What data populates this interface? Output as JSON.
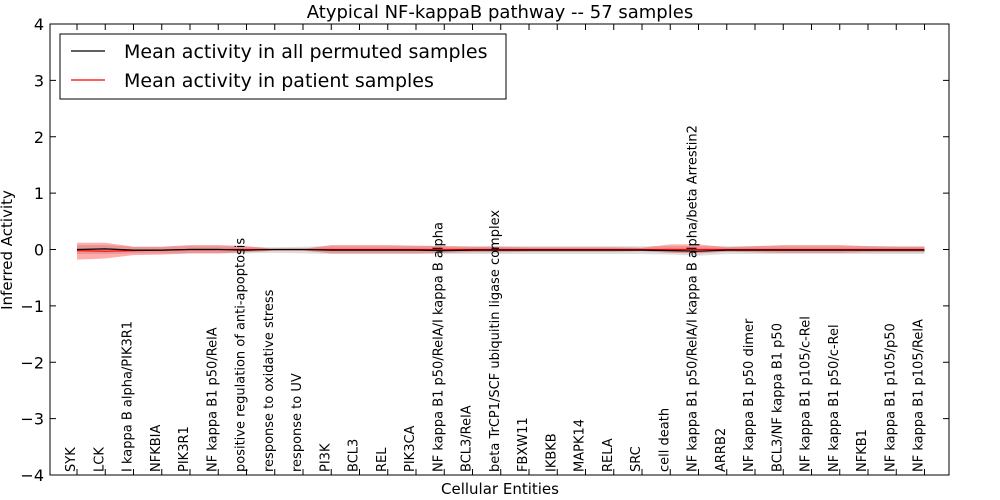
{
  "chart_data": {
    "type": "line",
    "title": "Atypical NF-kappaB pathway -- 57 samples",
    "xlabel": "Cellular Entities",
    "ylabel": "Inferred Activity",
    "ylim": [
      -4,
      4
    ],
    "yticks": [
      -4,
      -3,
      -2,
      -1,
      0,
      1,
      2,
      3,
      4
    ],
    "ytick_labels": [
      "−4",
      "−3",
      "−2",
      "−1",
      "0",
      "1",
      "2",
      "3",
      "4"
    ],
    "grid": false,
    "legend_position": "top-left",
    "categories": [
      "SYK",
      "LCK",
      "I kappa B alpha/PIK3R1",
      "NFKBIA",
      "PIK3R1",
      "NF kappa B1 p50/RelA",
      "positive regulation of anti-apoptosis",
      "response to oxidative stress",
      "response to UV",
      "PI3K",
      "BCL3",
      "REL",
      "PIK3CA",
      "NF kappa B1 p50/RelA/I kappa B alpha",
      "BCL3/RelA",
      "beta TrCP1/SCF ubiquitin ligase complex",
      "FBXW11",
      "IKBKB",
      "MAPK14",
      "RELA",
      "SRC",
      "cell death",
      "NF kappa B1 p50/RelA/I kappa B alpha/beta Arrestin2",
      "ARRB2",
      "NF kappa B1 p50 dimer",
      "BCL3/NF kappa B1 p50",
      "NF kappa B1 p105/c-Rel",
      "NF kappa B1 p50/c-Rel",
      "NFKB1",
      "NF kappa B1 p105/p50",
      "NF kappa B1 p105/RelA"
    ],
    "series": [
      {
        "name": "Mean activity in all permuted samples",
        "color": "#000000",
        "values": [
          0.0,
          0.01,
          -0.01,
          -0.01,
          0.0,
          0.0,
          -0.01,
          0.0,
          0.0,
          -0.01,
          -0.01,
          -0.01,
          -0.01,
          -0.02,
          -0.01,
          -0.01,
          -0.01,
          -0.01,
          -0.01,
          -0.01,
          -0.01,
          -0.02,
          -0.03,
          -0.01,
          -0.01,
          -0.01,
          -0.01,
          -0.01,
          -0.01,
          -0.01,
          -0.01
        ],
        "band_upper": [
          0.08,
          0.08,
          0.05,
          0.05,
          0.06,
          0.06,
          0.05,
          0.04,
          0.05,
          0.06,
          0.06,
          0.06,
          0.06,
          0.06,
          0.06,
          0.06,
          0.06,
          0.06,
          0.06,
          0.06,
          0.06,
          0.06,
          0.06,
          0.06,
          0.06,
          0.06,
          0.06,
          0.06,
          0.06,
          0.06,
          0.06
        ],
        "band_lower": [
          -0.08,
          -0.08,
          -0.07,
          -0.07,
          -0.07,
          -0.07,
          -0.07,
          -0.06,
          -0.07,
          -0.08,
          -0.08,
          -0.08,
          -0.08,
          -0.08,
          -0.08,
          -0.08,
          -0.08,
          -0.08,
          -0.08,
          -0.08,
          -0.08,
          -0.09,
          -0.11,
          -0.08,
          -0.08,
          -0.08,
          -0.08,
          -0.08,
          -0.08,
          -0.08,
          -0.08
        ]
      },
      {
        "name": "Mean activity in patient samples",
        "color": "#ff0000",
        "values": [
          -0.02,
          -0.03,
          -0.02,
          -0.01,
          0.0,
          0.0,
          0.0,
          0.0,
          0.0,
          0.0,
          0.0,
          0.0,
          0.0,
          0.0,
          0.0,
          0.0,
          0.0,
          0.0,
          0.0,
          0.0,
          0.0,
          0.0,
          0.0,
          0.0,
          0.0,
          0.0,
          0.0,
          0.0,
          0.0,
          0.0,
          0.0
        ],
        "band_upper": [
          0.12,
          0.12,
          0.05,
          0.05,
          0.08,
          0.08,
          0.06,
          0.01,
          0.01,
          0.08,
          0.08,
          0.08,
          0.07,
          0.06,
          0.05,
          0.05,
          0.04,
          0.04,
          0.04,
          0.04,
          0.03,
          0.09,
          0.09,
          0.04,
          0.06,
          0.08,
          0.08,
          0.08,
          0.06,
          0.05,
          0.05
        ],
        "band_lower": [
          -0.18,
          -0.16,
          -0.1,
          -0.09,
          -0.07,
          -0.07,
          -0.05,
          -0.02,
          -0.02,
          -0.07,
          -0.07,
          -0.07,
          -0.07,
          -0.06,
          -0.05,
          -0.05,
          -0.04,
          -0.04,
          -0.04,
          -0.04,
          -0.03,
          -0.06,
          -0.07,
          -0.04,
          -0.05,
          -0.06,
          -0.06,
          -0.06,
          -0.05,
          -0.05,
          -0.05
        ]
      }
    ]
  }
}
